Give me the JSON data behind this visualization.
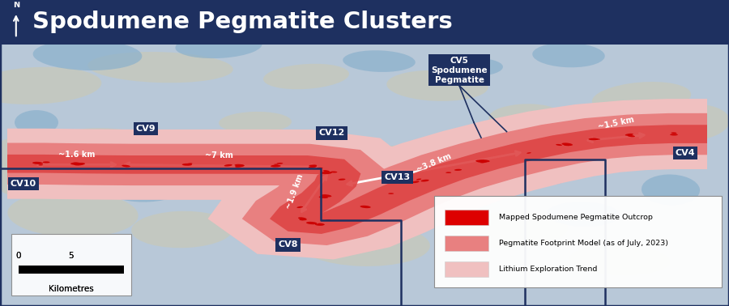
{
  "title": "Spodumene Pegmatite Clusters",
  "title_bg": "#1e3060",
  "title_color": "#ffffff",
  "title_fontsize": 21,
  "map_bg": "#b8c8d8",
  "land_color": "#c8c8b8",
  "water_color": "#8ab0cc",
  "border_color": "#1e3060",
  "legend_items": [
    {
      "label": "Mapped Spodumene Pegmatite Outcrop",
      "color": "#dd0000"
    },
    {
      "label": "Pegmatite Footprint Model (as of July, 2023)",
      "color": "#e88080"
    },
    {
      "label": "Lithium Exploration Trend",
      "color": "#f0c0c0"
    }
  ],
  "label_bg": "#1e3060",
  "label_fc": "white"
}
